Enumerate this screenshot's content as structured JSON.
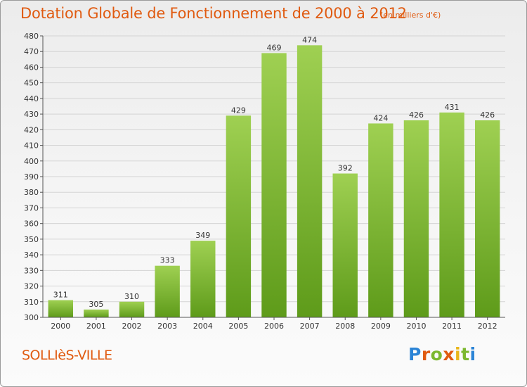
{
  "header": {
    "title": "Dotation Globale de Fonctionnement de 2000 à 2012",
    "unit": "(en milliers d'€)"
  },
  "footer": {
    "city": "SOLLIèS-VILLE",
    "brand_letters": [
      "P",
      "r",
      "o",
      "x",
      "i",
      "t",
      "i"
    ]
  },
  "colors": {
    "title": "#e05a10",
    "bar_top": "#9fd052",
    "bar_bottom": "#5e9b1a",
    "grid": "#d4d4d4"
  },
  "chart_data": {
    "type": "bar",
    "title": "Dotation Globale de Fonctionnement de 2000 à 2012",
    "xlabel": "",
    "ylabel": "",
    "categories": [
      "2000",
      "2001",
      "2002",
      "2003",
      "2004",
      "2005",
      "2006",
      "2007",
      "2008",
      "2009",
      "2010",
      "2011",
      "2012"
    ],
    "values": [
      311,
      305,
      310,
      333,
      349,
      429,
      469,
      474,
      392,
      424,
      426,
      431,
      426
    ],
    "ylim": [
      300,
      480
    ],
    "ytick_step": 10,
    "grid": true
  }
}
